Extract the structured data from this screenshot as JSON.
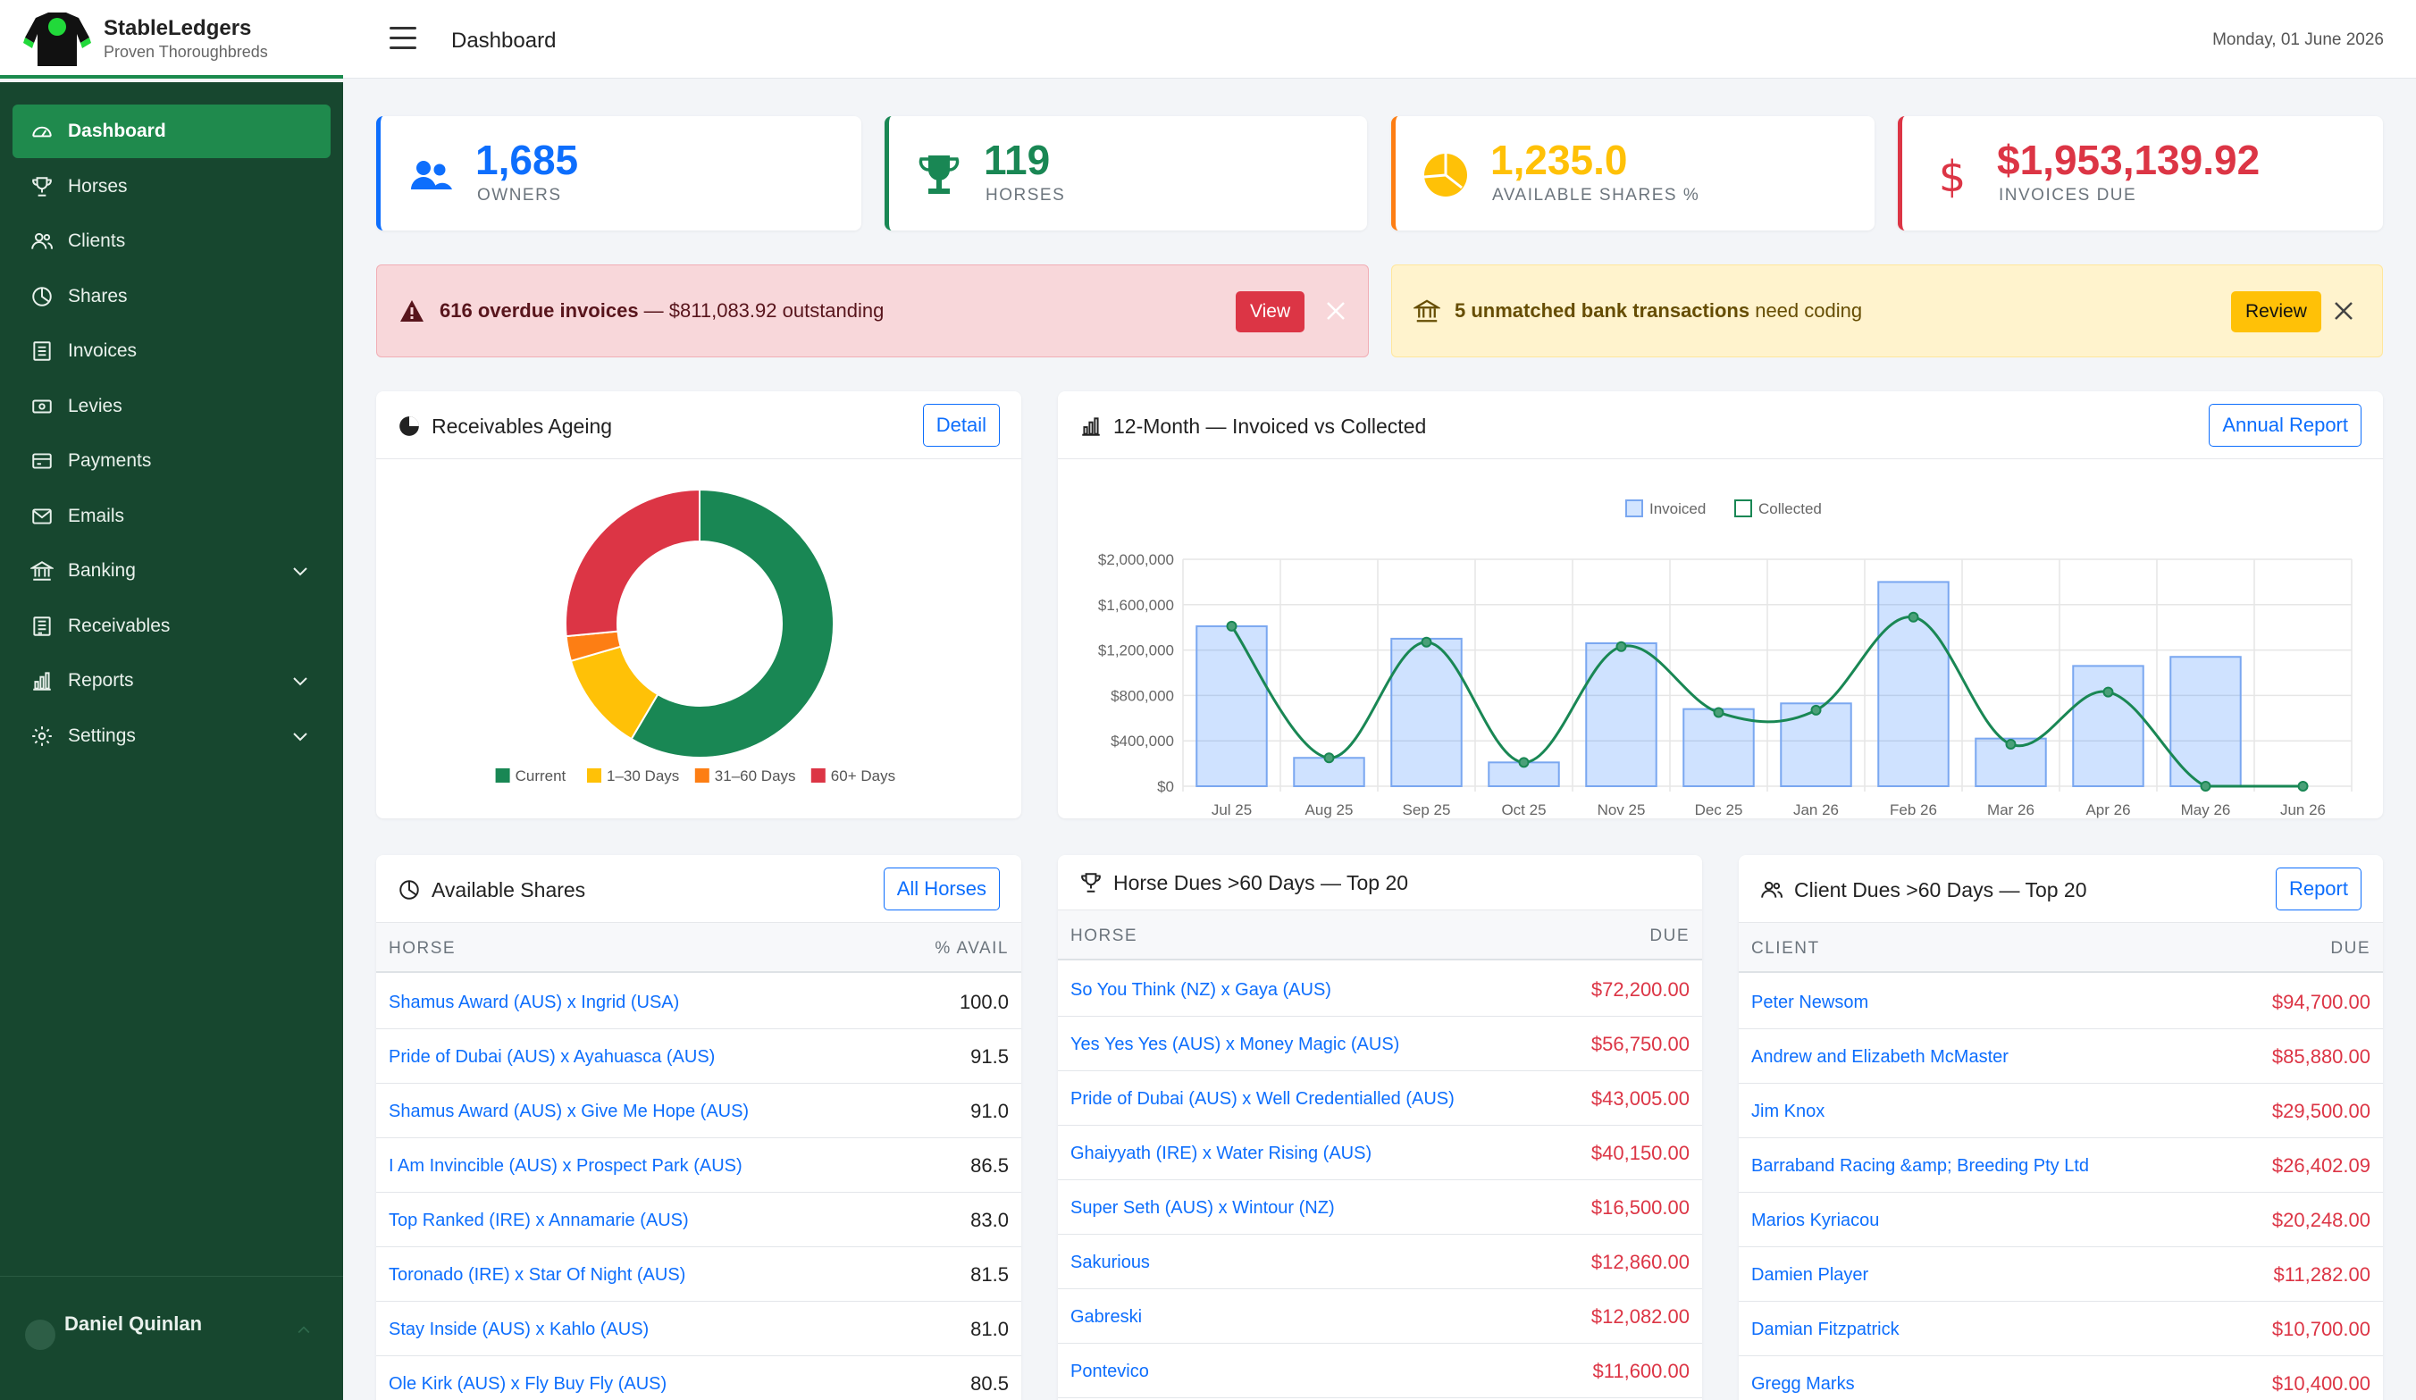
{
  "brand": {
    "name": "StableLedgers",
    "tagline": "Proven Thoroughbreds"
  },
  "header": {
    "title": "Dashboard",
    "date": "Monday, 01 June 2026"
  },
  "sidebar": {
    "items": [
      {
        "label": "Dashboard",
        "icon": "speedometer-icon",
        "active": true
      },
      {
        "label": "Horses",
        "icon": "trophy-icon"
      },
      {
        "label": "Clients",
        "icon": "people-icon"
      },
      {
        "label": "Shares",
        "icon": "pie-icon"
      },
      {
        "label": "Invoices",
        "icon": "document-icon"
      },
      {
        "label": "Levies",
        "icon": "cash-icon"
      },
      {
        "label": "Payments",
        "icon": "credit-card-icon"
      },
      {
        "label": "Emails",
        "icon": "envelope-icon"
      },
      {
        "label": "Banking",
        "icon": "bank-icon",
        "expandable": true
      },
      {
        "label": "Receivables",
        "icon": "ledger-icon"
      },
      {
        "label": "Reports",
        "icon": "bar-chart-icon",
        "expandable": true
      },
      {
        "label": "Settings",
        "icon": "gear-icon",
        "expandable": true
      }
    ],
    "user": {
      "name": "Daniel Quinlan"
    }
  },
  "stats": [
    {
      "value": "1,685",
      "label": "OWNERS",
      "color": "#0d6efd",
      "icon": "people-icon"
    },
    {
      "value": "119",
      "label": "HORSES",
      "color": "#198754",
      "icon": "trophy-icon"
    },
    {
      "value": "1,235.0",
      "label": "AVAILABLE SHARES %",
      "color": "#ffc107",
      "icon": "pie-icon"
    },
    {
      "value": "$1,953,139.92",
      "label": "INVOICES DUE",
      "color": "#dc3545",
      "icon": "dollar-icon"
    }
  ],
  "alerts": {
    "overdue": {
      "bold": "616 overdue invoices",
      "rest": " — $811,083.92 outstanding",
      "button": "View"
    },
    "bank": {
      "bold": "5 unmatched bank transactions",
      "rest": " need coding",
      "button": "Review"
    }
  },
  "ageing": {
    "title": "Receivables Ageing",
    "button": "Detail",
    "chart_data": {
      "type": "pie",
      "categories": [
        "Current",
        "1–30 Days",
        "31–60 Days",
        "60+ Days"
      ],
      "values": [
        58.5,
        12,
        3,
        26.5
      ],
      "colors": [
        "#198754",
        "#ffc107",
        "#fd7e14",
        "#dc3545"
      ],
      "legend": "bottom"
    }
  },
  "monthly": {
    "title": "12-Month — Invoiced vs Collected",
    "button": "Annual Report",
    "chart_data": {
      "type": "bar",
      "categories": [
        "Jul 25",
        "Aug 25",
        "Sep 25",
        "Oct 25",
        "Nov 25",
        "Dec 25",
        "Jan 26",
        "Feb 26",
        "Mar 26",
        "Apr 26",
        "May 26",
        "Jun 26"
      ],
      "series": [
        {
          "name": "Invoiced",
          "type": "bar",
          "values": [
            1410000,
            250000,
            1300000,
            210000,
            1260000,
            680000,
            730000,
            1800000,
            420000,
            1060000,
            1140000,
            0
          ]
        },
        {
          "name": "Collected",
          "type": "line",
          "values": [
            1410000,
            250000,
            1270000,
            210000,
            1230000,
            650000,
            670000,
            1490000,
            370000,
            830000,
            0,
            0
          ]
        }
      ],
      "yticks": [
        "$0",
        "$400,000",
        "$800,000",
        "$1,200,000",
        "$1,600,000",
        "$2,000,000"
      ],
      "ylim": [
        0,
        2000000
      ],
      "grid": true,
      "legend": "top"
    }
  },
  "shares": {
    "title": "Available Shares",
    "button": "All Horses",
    "col1": "HORSE",
    "col2": "% AVAIL",
    "rows": [
      {
        "name": "Shamus Award (AUS) x Ingrid (USA)",
        "value": "100.0"
      },
      {
        "name": "Pride of Dubai (AUS) x Ayahuasca (AUS)",
        "value": "91.5"
      },
      {
        "name": "Shamus Award (AUS) x Give Me Hope (AUS)",
        "value": "91.0"
      },
      {
        "name": "I Am Invincible (AUS) x Prospect Park (AUS)",
        "value": "86.5"
      },
      {
        "name": "Top Ranked (IRE) x Annamarie (AUS)",
        "value": "83.0"
      },
      {
        "name": "Toronado (IRE) x Star Of Night (AUS)",
        "value": "81.5"
      },
      {
        "name": "Stay Inside (AUS) x Kahlo (AUS)",
        "value": "81.0"
      },
      {
        "name": "Ole Kirk (AUS) x Fly Buy Fly (AUS)",
        "value": "80.5"
      }
    ]
  },
  "horseDues": {
    "title": "Horse Dues >60 Days — Top 20",
    "col1": "HORSE",
    "col2": "DUE",
    "rows": [
      {
        "name": "So You Think (NZ) x Gaya (AUS)",
        "value": "$72,200.00"
      },
      {
        "name": "Yes Yes Yes (AUS) x Money Magic (AUS)",
        "value": "$56,750.00"
      },
      {
        "name": "Pride of Dubai (AUS) x Well Credentialled (AUS)",
        "value": "$43,005.00"
      },
      {
        "name": "Ghaiyyath (IRE) x Water Rising (AUS)",
        "value": "$40,150.00"
      },
      {
        "name": "Super Seth (AUS) x Wintour (NZ)",
        "value": "$16,500.00"
      },
      {
        "name": "Sakurious",
        "value": "$12,860.00"
      },
      {
        "name": "Gabreski",
        "value": "$12,082.00"
      },
      {
        "name": "Pontevico",
        "value": "$11,600.00"
      }
    ]
  },
  "clientDues": {
    "title": "Client Dues >60 Days — Top 20",
    "button": "Report",
    "col1": "CLIENT",
    "col2": "DUE",
    "rows": [
      {
        "name": "Peter Newsom",
        "value": "$94,700.00"
      },
      {
        "name": "Andrew and Elizabeth McMaster",
        "value": "$85,880.00"
      },
      {
        "name": "Jim Knox",
        "value": "$29,500.00"
      },
      {
        "name": "Barraband Racing &amp; Breeding Pty Ltd",
        "value": "$26,402.09"
      },
      {
        "name": "Marios Kyriacou",
        "value": "$20,248.00"
      },
      {
        "name": "Damien Player",
        "value": "$11,282.00"
      },
      {
        "name": "Damian Fitzpatrick",
        "value": "$10,700.00"
      },
      {
        "name": "Gregg Marks",
        "value": "$10,400.00"
      }
    ]
  }
}
